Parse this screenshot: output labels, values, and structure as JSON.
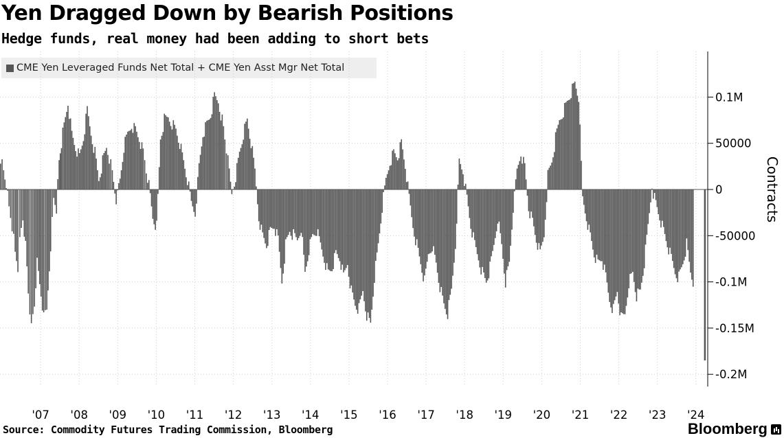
{
  "header": {
    "title": "Yen Dragged Down by Bearish Positions",
    "subtitle": "Hedge funds, real money had been adding to short bets"
  },
  "legend": {
    "label": "CME Yen Leveraged Funds Net Total + CME Yen Asst Mgr Net Total"
  },
  "footer": {
    "source": "Source: Commodity Futures Trading Commission, Bloomberg",
    "brand": "Bloomberg"
  },
  "colors": {
    "bar": "#555555",
    "grid": "#cccccc",
    "axis": "#000000",
    "legend_bg": "#eeeeee"
  },
  "chart_data": {
    "type": "bar",
    "title": "Yen Dragged Down by Bearish Positions",
    "ylabel": "Contracts",
    "ylim": [
      -210000,
      145000
    ],
    "y_axis_side": "right",
    "grid": true,
    "legend_placement": "top-left",
    "yticks": [
      {
        "value": 100000,
        "label": "0.1M"
      },
      {
        "value": 50000,
        "label": "50000"
      },
      {
        "value": 0,
        "label": "0"
      },
      {
        "value": -50000,
        "label": "-50000"
      },
      {
        "value": -100000,
        "label": "-0.1M"
      },
      {
        "value": -150000,
        "label": "-0.15M"
      },
      {
        "value": -200000,
        "label": "-0.2M"
      }
    ],
    "xticks": [
      {
        "value": 2007,
        "label": "'07"
      },
      {
        "value": 2008,
        "label": "'08"
      },
      {
        "value": 2009,
        "label": "'09"
      },
      {
        "value": 2010,
        "label": "'10"
      },
      {
        "value": 2011,
        "label": "'11"
      },
      {
        "value": 2012,
        "label": "'12"
      },
      {
        "value": 2013,
        "label": "'13"
      },
      {
        "value": 2014,
        "label": "'14"
      },
      {
        "value": 2015,
        "label": "'15"
      },
      {
        "value": 2016,
        "label": "'16"
      },
      {
        "value": 2017,
        "label": "'17"
      },
      {
        "value": 2018,
        "label": "'18"
      },
      {
        "value": 2019,
        "label": "'19"
      },
      {
        "value": 2020,
        "label": "'20"
      },
      {
        "value": 2021,
        "label": "'21"
      },
      {
        "value": 2022,
        "label": "'22"
      },
      {
        "value": 2023,
        "label": "'23"
      },
      {
        "value": 2024,
        "label": "'24"
      }
    ],
    "xlim": [
      2006.0,
      2024.35
    ],
    "series": [
      {
        "name": "CME Yen Leveraged Funds Net Total + CME Yen Asst Mgr Net Total",
        "x": [
          2006.0,
          2006.08,
          2006.15,
          2006.22,
          2006.3,
          2006.38,
          2006.45,
          2006.5,
          2006.58,
          2006.65,
          2006.72,
          2006.8,
          2006.88,
          2006.95,
          2007.05,
          2007.12,
          2007.2,
          2007.3,
          2007.38,
          2007.45,
          2007.52,
          2007.58,
          2007.65,
          2007.75,
          2007.85,
          2007.95,
          2008.05,
          2008.15,
          2008.25,
          2008.35,
          2008.45,
          2008.55,
          2008.65,
          2008.75,
          2008.82,
          2008.9,
          2009.0,
          2009.1,
          2009.2,
          2009.3,
          2009.4,
          2009.5,
          2009.6,
          2009.7,
          2009.78,
          2009.85,
          2009.95,
          2010.05,
          2010.15,
          2010.25,
          2010.35,
          2010.45,
          2010.55,
          2010.65,
          2010.75,
          2010.85,
          2010.95,
          2011.05,
          2011.15,
          2011.25,
          2011.35,
          2011.45,
          2011.55,
          2011.65,
          2011.75,
          2011.82,
          2011.9,
          2012.0,
          2012.1,
          2012.2,
          2012.3,
          2012.4,
          2012.5,
          2012.6,
          2012.7,
          2012.8,
          2012.9,
          2013.0,
          2013.1,
          2013.2,
          2013.3,
          2013.4,
          2013.5,
          2013.6,
          2013.7,
          2013.8,
          2013.9,
          2014.0,
          2014.1,
          2014.2,
          2014.3,
          2014.4,
          2014.5,
          2014.6,
          2014.7,
          2014.8,
          2014.9,
          2015.0,
          2015.1,
          2015.2,
          2015.3,
          2015.4,
          2015.5,
          2015.6,
          2015.7,
          2015.8,
          2015.9,
          2016.0,
          2016.1,
          2016.2,
          2016.3,
          2016.4,
          2016.5,
          2016.6,
          2016.7,
          2016.8,
          2016.9,
          2017.0,
          2017.1,
          2017.2,
          2017.3,
          2017.4,
          2017.5,
          2017.6,
          2017.7,
          2017.8,
          2017.9,
          2018.0,
          2018.1,
          2018.2,
          2018.3,
          2018.4,
          2018.5,
          2018.6,
          2018.7,
          2018.8,
          2018.9,
          2019.0,
          2019.1,
          2019.2,
          2019.3,
          2019.4,
          2019.5,
          2019.6,
          2019.7,
          2019.8,
          2019.9,
          2020.0,
          2020.1,
          2020.2,
          2020.3,
          2020.4,
          2020.5,
          2020.6,
          2020.7,
          2020.8,
          2020.9,
          2021.0,
          2021.1,
          2021.2,
          2021.3,
          2021.4,
          2021.5,
          2021.6,
          2021.7,
          2021.8,
          2021.9,
          2022.0,
          2022.1,
          2022.2,
          2022.3,
          2022.4,
          2022.5,
          2022.6,
          2022.7,
          2022.8,
          2022.9,
          2023.0,
          2023.1,
          2023.2,
          2023.3,
          2023.4,
          2023.5,
          2023.6,
          2023.7,
          2023.8,
          2023.9,
          2024.0,
          2024.1,
          2024.18,
          2024.26,
          2024.3
        ],
        "values": [
          35000,
          20000,
          5000,
          -20000,
          -40000,
          -70000,
          -85000,
          -55000,
          -30000,
          -60000,
          -110000,
          -150000,
          -125000,
          -80000,
          -115000,
          -140000,
          -130000,
          -60000,
          -10000,
          -20000,
          30000,
          50000,
          70000,
          95000,
          60000,
          45000,
          35000,
          55000,
          85000,
          60000,
          40000,
          10000,
          30000,
          45000,
          35000,
          20000,
          -10000,
          10000,
          45000,
          60000,
          70000,
          65000,
          55000,
          40000,
          20000,
          5000,
          -30000,
          -40000,
          55000,
          75000,
          78000,
          72000,
          65000,
          50000,
          30000,
          10000,
          -15000,
          -25000,
          25000,
          60000,
          70000,
          80000,
          100000,
          95000,
          75000,
          55000,
          30000,
          -5000,
          15000,
          40000,
          60000,
          75000,
          50000,
          20000,
          -30000,
          -50000,
          -60000,
          -45000,
          -40000,
          -55000,
          -100000,
          -60000,
          -45000,
          -50000,
          -55000,
          -40000,
          -90000,
          -65000,
          -50000,
          -45000,
          -60000,
          -75000,
          -90000,
          -85000,
          -70000,
          -75000,
          -95000,
          -80000,
          -110000,
          -125000,
          -130000,
          -110000,
          -135000,
          -145000,
          -95000,
          -60000,
          -20000,
          10000,
          30000,
          40000,
          35000,
          50000,
          25000,
          -10000,
          -40000,
          -60000,
          -80000,
          -100000,
          -70000,
          -60000,
          -80000,
          -105000,
          -125000,
          -135000,
          -110000,
          -60000,
          30000,
          20000,
          -10000,
          -40000,
          -60000,
          -75000,
          -90000,
          -100000,
          -85000,
          -60000,
          -30000,
          -60000,
          -100000,
          -80000,
          -20000,
          20000,
          40000,
          25000,
          -20000,
          -35000,
          -55000,
          -70000,
          -50000,
          15000,
          30000,
          55000,
          75000,
          85000,
          95000,
          105000,
          115000,
          100000,
          -10000,
          -30000,
          -50000,
          -70000,
          -80000,
          -75000,
          -95000,
          -120000,
          -130000,
          -110000,
          -140000,
          -135000,
          -100000,
          -90000,
          -115000,
          -110000,
          -80000,
          -40000,
          3000,
          -15000,
          -30000,
          -45000,
          -60000,
          -75000,
          -90000,
          -95000,
          -80000,
          -60000,
          -90000,
          -105000,
          -140000,
          -150000,
          -185000,
          -185000
        ]
      }
    ]
  }
}
